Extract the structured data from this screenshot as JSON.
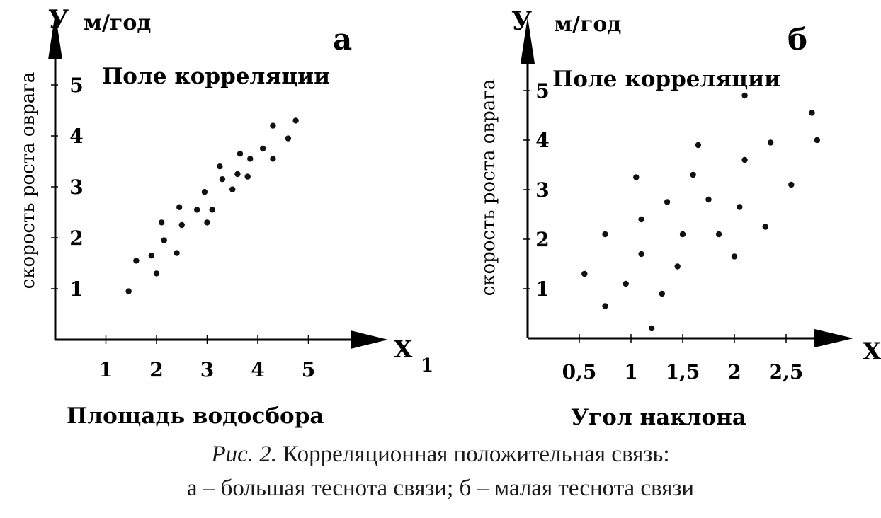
{
  "caption": {
    "figure_label": "Рис. 2.",
    "line1_text": " Корреляционная положительная связь:",
    "line2_text": "а – большая теснота связи; б – малая теснота связи"
  },
  "chart_data": [
    {
      "type": "scatter",
      "panel_letter": "а",
      "title": "Поле корреляции",
      "y_axis_symbol": "У",
      "y_unit": "м/год",
      "ylabel": "скорость роста оврага",
      "x_axis_symbol": "X",
      "x_axis_subscript": "1",
      "xlabel": "Площадь водосбора",
      "xlim": [
        0,
        6
      ],
      "ylim": [
        0,
        5.5
      ],
      "x_ticks": [
        1,
        2,
        3,
        4,
        5
      ],
      "x_tick_labels": [
        "1",
        "2",
        "3",
        "4",
        "5"
      ],
      "y_ticks": [
        1,
        2,
        3,
        4,
        5
      ],
      "y_tick_labels": [
        "1",
        "2",
        "3",
        "4",
        "5"
      ],
      "points": [
        {
          "x": 1.45,
          "y": 0.95
        },
        {
          "x": 1.6,
          "y": 1.55
        },
        {
          "x": 1.9,
          "y": 1.65
        },
        {
          "x": 2.0,
          "y": 1.3
        },
        {
          "x": 2.1,
          "y": 2.3
        },
        {
          "x": 2.15,
          "y": 1.95
        },
        {
          "x": 2.4,
          "y": 1.7
        },
        {
          "x": 2.45,
          "y": 2.6
        },
        {
          "x": 2.5,
          "y": 2.25
        },
        {
          "x": 2.8,
          "y": 2.55
        },
        {
          "x": 2.95,
          "y": 2.9
        },
        {
          "x": 3.0,
          "y": 2.3
        },
        {
          "x": 3.1,
          "y": 2.55
        },
        {
          "x": 3.25,
          "y": 3.4
        },
        {
          "x": 3.3,
          "y": 3.15
        },
        {
          "x": 3.5,
          "y": 2.95
        },
        {
          "x": 3.6,
          "y": 3.25
        },
        {
          "x": 3.65,
          "y": 3.65
        },
        {
          "x": 3.8,
          "y": 3.2
        },
        {
          "x": 3.85,
          "y": 3.55
        },
        {
          "x": 4.1,
          "y": 3.75
        },
        {
          "x": 4.3,
          "y": 3.55
        },
        {
          "x": 4.3,
          "y": 4.2
        },
        {
          "x": 4.6,
          "y": 3.95
        },
        {
          "x": 4.75,
          "y": 4.3
        }
      ]
    },
    {
      "type": "scatter",
      "panel_letter": "б",
      "title": "Поле корреляции",
      "y_axis_symbol": "У",
      "y_unit": "м/год",
      "ylabel": "скорость роста оврага",
      "x_axis_symbol": "X",
      "xlabel": "Угол наклона",
      "xlim": [
        0,
        3.2
      ],
      "ylim": [
        0,
        5.5
      ],
      "x_ticks": [
        0.5,
        1,
        1.5,
        2,
        2.5
      ],
      "x_tick_labels": [
        "0,5",
        "1",
        "1,5",
        "2",
        "2,5"
      ],
      "y_ticks": [
        1,
        2,
        3,
        4,
        5
      ],
      "y_tick_labels": [
        "1",
        "2",
        "3",
        "4",
        "5"
      ],
      "points": [
        {
          "x": 0.55,
          "y": 1.3
        },
        {
          "x": 0.75,
          "y": 0.65
        },
        {
          "x": 0.75,
          "y": 2.1
        },
        {
          "x": 0.95,
          "y": 1.1
        },
        {
          "x": 1.05,
          "y": 3.25
        },
        {
          "x": 1.1,
          "y": 2.4
        },
        {
          "x": 1.1,
          "y": 1.7
        },
        {
          "x": 1.2,
          "y": 0.2
        },
        {
          "x": 1.3,
          "y": 0.9
        },
        {
          "x": 1.35,
          "y": 2.75
        },
        {
          "x": 1.45,
          "y": 1.45
        },
        {
          "x": 1.5,
          "y": 2.1
        },
        {
          "x": 1.6,
          "y": 3.3
        },
        {
          "x": 1.65,
          "y": 3.9
        },
        {
          "x": 1.75,
          "y": 2.8
        },
        {
          "x": 1.85,
          "y": 2.1
        },
        {
          "x": 2.0,
          "y": 1.65
        },
        {
          "x": 2.05,
          "y": 2.65
        },
        {
          "x": 2.1,
          "y": 3.6
        },
        {
          "x": 2.1,
          "y": 4.9
        },
        {
          "x": 2.3,
          "y": 2.25
        },
        {
          "x": 2.35,
          "y": 3.95
        },
        {
          "x": 2.55,
          "y": 3.1
        },
        {
          "x": 2.75,
          "y": 4.55
        },
        {
          "x": 2.8,
          "y": 4.0
        }
      ]
    }
  ]
}
